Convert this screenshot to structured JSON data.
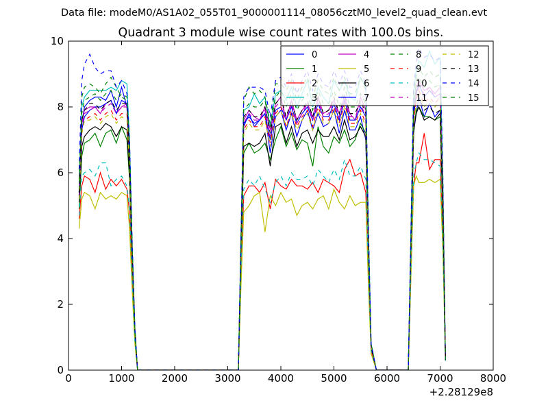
{
  "suptitle": "Data file: modeM0/AS1A02_055T01_9000001114_08056cztM0_level2_quad_clean.evt",
  "chart_data": {
    "type": "line",
    "title": "Quadrant 3 module wise count rates with 100.0s bins.",
    "xlabel": "",
    "ylabel": "",
    "x_offset_label": "+2.28129e8",
    "xlim": [
      0,
      8000
    ],
    "ylim": [
      0,
      10
    ],
    "x_ticks": [
      0,
      1000,
      2000,
      3000,
      4000,
      5000,
      6000,
      7000,
      8000
    ],
    "y_ticks": [
      0,
      2,
      4,
      6,
      8,
      10
    ],
    "grid": false,
    "legend_position": "top-right",
    "legend_columns": 4,
    "x": [
      200,
      250,
      300,
      400,
      500,
      600,
      700,
      800,
      900,
      1000,
      1100,
      1150,
      1200,
      1250,
      1300,
      2000,
      3000,
      3200,
      3250,
      3300,
      3400,
      3500,
      3600,
      3700,
      3800,
      3900,
      4000,
      4100,
      4200,
      4300,
      4400,
      4500,
      4600,
      4700,
      4800,
      4900,
      5000,
      5100,
      5200,
      5300,
      5400,
      5500,
      5600,
      5650,
      5700,
      5800,
      6000,
      6400,
      6450,
      6500,
      6550,
      6600,
      6700,
      6800,
      6900,
      7000,
      7050,
      7100
    ],
    "series": [
      {
        "name": "0",
        "color": "#0000ff",
        "dash": "solid",
        "values": [
          5.4,
          7.5,
          8.0,
          8.2,
          8.3,
          8.3,
          8.2,
          8.5,
          8.0,
          8.6,
          8.0,
          6.3,
          3.5,
          1.2,
          0.0,
          0.0,
          0.0,
          0.0,
          3.8,
          7.4,
          7.8,
          7.4,
          7.6,
          7.8,
          6.6,
          7.7,
          7.9,
          7.3,
          7.8,
          7.1,
          7.6,
          7.9,
          7.3,
          7.8,
          7.4,
          7.5,
          7.9,
          7.2,
          7.9,
          7.3,
          7.3,
          7.7,
          7.0,
          3.5,
          0.7,
          0.0,
          0.0,
          0.0,
          3.5,
          7.2,
          7.8,
          8.3,
          7.7,
          8.1,
          7.7,
          7.9,
          5.0,
          0.3
        ]
      },
      {
        "name": "1",
        "color": "#008000",
        "dash": "solid",
        "values": [
          4.9,
          6.5,
          6.9,
          7.0,
          7.2,
          6.8,
          7.2,
          7.3,
          6.9,
          7.4,
          7.0,
          5.8,
          3.2,
          1.1,
          0.0,
          0.0,
          0.0,
          0.0,
          3.6,
          6.6,
          6.9,
          6.6,
          6.7,
          6.9,
          6.4,
          7.0,
          7.4,
          6.8,
          7.2,
          6.7,
          7.0,
          6.9,
          6.2,
          7.4,
          6.8,
          6.6,
          7.1,
          6.9,
          7.3,
          6.8,
          7.0,
          7.5,
          7.2,
          3.4,
          0.7,
          0.0,
          0.0,
          0.0,
          3.5,
          7.2,
          7.9,
          8.0,
          7.7,
          7.7,
          7.6,
          7.7,
          4.8,
          0.3
        ]
      },
      {
        "name": "2",
        "color": "#ff0000",
        "dash": "solid",
        "values": [
          4.6,
          5.6,
          5.9,
          5.8,
          5.4,
          6.0,
          5.5,
          5.8,
          5.6,
          5.8,
          5.5,
          4.8,
          2.8,
          0.9,
          0.0,
          0.0,
          0.0,
          0.0,
          3.0,
          5.3,
          5.6,
          5.6,
          5.4,
          5.7,
          4.9,
          5.8,
          5.6,
          5.5,
          5.8,
          5.6,
          5.6,
          5.5,
          5.7,
          5.4,
          5.8,
          5.7,
          5.6,
          5.4,
          6.1,
          6.4,
          5.9,
          6.0,
          5.4,
          2.8,
          0.6,
          0.0,
          0.0,
          0.0,
          2.9,
          5.6,
          6.3,
          6.3,
          7.2,
          6.1,
          6.4,
          6.4,
          4.1,
          0.3
        ]
      },
      {
        "name": "3",
        "color": "#00bfbf",
        "dash": "solid",
        "values": [
          5.7,
          8.0,
          8.3,
          8.5,
          8.5,
          8.5,
          8.5,
          8.6,
          8.5,
          8.8,
          8.7,
          7.0,
          3.8,
          1.3,
          0.0,
          0.0,
          0.0,
          0.0,
          4.1,
          7.9,
          8.0,
          8.4,
          8.1,
          8.3,
          7.4,
          8.4,
          8.5,
          8.2,
          8.6,
          8.0,
          8.4,
          8.8,
          8.0,
          8.6,
          8.3,
          8.1,
          8.8,
          8.5,
          8.8,
          8.3,
          8.2,
          8.9,
          8.6,
          4.2,
          0.8,
          0.0,
          0.0,
          0.0,
          4.2,
          8.4,
          9.1,
          9.4,
          9.2,
          9.7,
          9.3,
          9.5,
          6.0,
          0.3
        ]
      },
      {
        "name": "4",
        "color": "#bf00bf",
        "dash": "solid",
        "values": [
          5.3,
          7.5,
          7.9,
          8.0,
          8.0,
          7.8,
          8.1,
          8.2,
          7.8,
          8.0,
          8.1,
          6.5,
          3.6,
          1.2,
          0.0,
          0.0,
          0.0,
          0.0,
          3.9,
          7.6,
          7.9,
          7.7,
          7.6,
          8.0,
          7.3,
          8.1,
          8.3,
          7.6,
          8.2,
          7.6,
          7.9,
          8.1,
          7.7,
          8.3,
          7.8,
          7.9,
          8.2,
          7.8,
          8.3,
          7.8,
          7.6,
          8.3,
          7.9,
          3.9,
          0.7,
          0.0,
          0.0,
          0.0,
          3.9,
          7.8,
          8.6,
          8.8,
          8.5,
          8.6,
          8.4,
          8.6,
          5.5,
          0.3
        ]
      },
      {
        "name": "5",
        "color": "#bfbf00",
        "dash": "solid",
        "values": [
          4.3,
          5.2,
          5.4,
          5.3,
          4.9,
          5.4,
          5.2,
          5.3,
          5.2,
          5.4,
          5.3,
          4.3,
          2.4,
          0.8,
          0.0,
          0.0,
          0.0,
          0.0,
          2.6,
          4.8,
          5.0,
          5.3,
          5.4,
          4.2,
          5.3,
          5.0,
          5.4,
          5.1,
          5.2,
          4.7,
          5.0,
          5.1,
          4.9,
          5.2,
          5.3,
          4.9,
          5.5,
          5.1,
          4.9,
          5.3,
          5.0,
          5.1,
          5.1,
          2.5,
          0.5,
          0.0,
          0.0,
          0.0,
          2.8,
          5.6,
          5.9,
          5.7,
          5.7,
          5.8,
          5.7,
          5.8,
          3.7,
          0.3
        ]
      },
      {
        "name": "6",
        "color": "#000000",
        "dash": "solid",
        "values": [
          5.1,
          6.8,
          7.1,
          7.3,
          7.4,
          7.3,
          7.5,
          7.4,
          7.1,
          7.4,
          7.3,
          5.9,
          3.3,
          1.1,
          0.0,
          0.0,
          0.0,
          0.0,
          3.5,
          6.8,
          6.9,
          6.8,
          6.9,
          7.2,
          6.2,
          7.4,
          7.5,
          6.9,
          7.4,
          6.8,
          7.2,
          7.3,
          6.9,
          7.3,
          7.1,
          7.1,
          7.4,
          7.0,
          7.6,
          7.0,
          7.1,
          7.4,
          7.1,
          3.5,
          0.7,
          0.0,
          0.0,
          0.0,
          3.6,
          7.3,
          7.8,
          8.0,
          7.6,
          7.7,
          7.6,
          7.8,
          4.9,
          0.3
        ]
      },
      {
        "name": "7",
        "color": "#0000ff",
        "dash": "solid",
        "values": [
          5.3,
          7.3,
          7.7,
          7.9,
          8.0,
          8.0,
          8.1,
          8.2,
          7.8,
          8.2,
          8.1,
          6.5,
          3.5,
          1.2,
          0.0,
          0.0,
          0.0,
          0.0,
          3.8,
          7.5,
          7.7,
          7.5,
          7.6,
          7.8,
          7.0,
          7.9,
          8.0,
          7.6,
          8.0,
          7.5,
          7.8,
          8.0,
          7.6,
          8.1,
          7.7,
          7.7,
          8.1,
          7.6,
          8.2,
          7.6,
          7.6,
          8.0,
          7.7,
          3.8,
          0.7,
          0.0,
          0.0,
          0.0,
          3.8,
          7.7,
          8.4,
          8.7,
          8.3,
          8.5,
          8.3,
          8.4,
          5.4,
          0.3
        ]
      },
      {
        "name": "8",
        "color": "#008000",
        "dash": "dashed",
        "values": [
          5.8,
          8.3,
          8.6,
          8.7,
          8.6,
          8.4,
          8.7,
          8.9,
          8.6,
          8.3,
          8.2,
          6.9,
          3.8,
          1.3,
          0.0,
          0.0,
          0.0,
          0.0,
          4.2,
          8.2,
          8.6,
          8.4,
          8.5,
          8.3,
          7.5,
          8.7,
          8.7,
          8.5,
          8.8,
          8.2,
          8.6,
          8.9,
          8.3,
          8.8,
          8.5,
          8.4,
          8.9,
          8.5,
          8.9,
          8.4,
          8.4,
          8.9,
          8.5,
          4.2,
          0.8,
          0.0,
          0.0,
          0.0,
          4.1,
          8.3,
          8.9,
          9.2,
          8.9,
          9.1,
          8.9,
          9.0,
          5.8,
          0.3
        ]
      },
      {
        "name": "9",
        "color": "#ff0000",
        "dash": "dashed",
        "values": [
          5.2,
          7.2,
          7.6,
          7.7,
          7.8,
          7.6,
          7.8,
          7.9,
          7.6,
          7.8,
          7.8,
          6.3,
          3.4,
          1.2,
          0.0,
          0.0,
          0.0,
          0.0,
          3.7,
          7.3,
          7.6,
          7.4,
          7.4,
          7.7,
          6.9,
          7.8,
          8.0,
          7.4,
          7.9,
          7.4,
          7.7,
          7.9,
          7.4,
          8.0,
          7.6,
          7.6,
          8.0,
          7.5,
          8.1,
          7.5,
          7.5,
          7.9,
          7.5,
          3.7,
          0.7,
          0.0,
          0.0,
          0.0,
          3.7,
          7.6,
          8.2,
          8.5,
          8.1,
          8.3,
          8.1,
          8.3,
          5.3,
          0.3
        ]
      },
      {
        "name": "10",
        "color": "#00bfbf",
        "dash": "dashed",
        "values": [
          4.7,
          5.9,
          6.0,
          6.1,
          5.9,
          6.3,
          6.3,
          5.6,
          5.8,
          5.9,
          5.6,
          4.9,
          2.7,
          0.9,
          0.0,
          0.0,
          0.0,
          0.0,
          3.1,
          5.5,
          5.8,
          5.6,
          5.9,
          5.5,
          5.1,
          5.7,
          5.9,
          5.6,
          6.0,
          5.8,
          5.8,
          5.9,
          5.6,
          6.1,
          5.9,
          5.7,
          6.1,
          5.8,
          6.4,
          5.9,
          5.9,
          6.2,
          5.8,
          2.9,
          0.6,
          0.0,
          0.0,
          0.0,
          3.0,
          5.9,
          6.3,
          6.6,
          6.4,
          6.4,
          6.3,
          6.2,
          4.0,
          0.3
        ]
      },
      {
        "name": "11",
        "color": "#bf00bf",
        "dash": "dashed",
        "values": [
          5.3,
          7.4,
          7.8,
          7.9,
          8.0,
          7.8,
          8.0,
          8.1,
          7.8,
          8.0,
          8.0,
          6.4,
          3.5,
          1.2,
          0.0,
          0.0,
          0.0,
          0.0,
          3.8,
          7.5,
          7.8,
          7.6,
          7.6,
          7.9,
          7.1,
          8.0,
          8.2,
          7.6,
          8.1,
          7.5,
          7.8,
          8.1,
          7.6,
          8.2,
          7.7,
          7.8,
          8.2,
          7.7,
          8.3,
          7.7,
          7.7,
          8.1,
          7.7,
          3.8,
          0.7,
          0.0,
          0.0,
          0.0,
          3.8,
          7.8,
          8.4,
          8.6,
          8.4,
          8.6,
          8.3,
          8.4,
          5.4,
          0.3
        ]
      },
      {
        "name": "12",
        "color": "#bfbf00",
        "dash": "dashed",
        "values": [
          5.2,
          7.2,
          7.6,
          7.6,
          7.7,
          7.5,
          7.7,
          7.8,
          7.5,
          7.7,
          7.6,
          6.2,
          3.4,
          1.1,
          0.0,
          0.0,
          0.0,
          0.0,
          3.6,
          7.2,
          7.5,
          7.3,
          7.3,
          7.6,
          6.8,
          7.7,
          7.9,
          7.4,
          7.8,
          7.3,
          7.6,
          7.8,
          7.3,
          7.9,
          7.5,
          7.5,
          7.9,
          7.4,
          8.0,
          7.4,
          7.4,
          7.8,
          7.4,
          3.7,
          0.7,
          0.0,
          0.0,
          0.0,
          3.7,
          7.5,
          8.1,
          8.4,
          8.0,
          8.2,
          8.0,
          8.2,
          5.2,
          0.3
        ]
      },
      {
        "name": "13",
        "color": "#000000",
        "dash": "dashed",
        "values": [
          5.4,
          7.6,
          7.9,
          8.1,
          8.1,
          7.9,
          8.1,
          8.2,
          7.9,
          8.1,
          8.1,
          6.5,
          3.6,
          1.2,
          0.0,
          0.0,
          0.0,
          0.0,
          3.9,
          7.7,
          7.9,
          7.7,
          7.7,
          8.0,
          7.2,
          8.1,
          8.3,
          7.7,
          8.2,
          7.6,
          7.9,
          8.2,
          7.7,
          8.3,
          7.8,
          7.9,
          8.3,
          7.8,
          8.4,
          7.8,
          7.8,
          8.2,
          7.8,
          3.9,
          0.7,
          0.0,
          0.0,
          0.0,
          3.8,
          7.9,
          8.5,
          8.3,
          7.9,
          8.0,
          7.8,
          7.9,
          5.1,
          0.3
        ]
      },
      {
        "name": "14",
        "color": "#0000ff",
        "dash": "dashed",
        "values": [
          6.1,
          8.8,
          9.3,
          9.6,
          9.2,
          9.0,
          9.1,
          9.1,
          8.6,
          8.8,
          8.4,
          7.0,
          3.9,
          1.3,
          0.0,
          0.0,
          0.0,
          0.0,
          4.3,
          8.3,
          8.6,
          8.6,
          8.6,
          8.5,
          7.7,
          8.8,
          8.9,
          8.6,
          9.0,
          8.4,
          8.8,
          9.1,
          8.5,
          9.0,
          8.7,
          8.6,
          9.1,
          8.7,
          9.1,
          8.6,
          8.6,
          9.1,
          8.7,
          4.3,
          0.8,
          0.0,
          0.0,
          0.0,
          4.3,
          8.6,
          9.3,
          9.8,
          9.5,
          9.6,
          9.4,
          9.5,
          6.1,
          0.3
        ]
      },
      {
        "name": "15",
        "color": "#008000",
        "dash": "dashed",
        "values": [
          5.5,
          7.8,
          8.2,
          8.3,
          8.4,
          8.2,
          8.4,
          8.5,
          8.2,
          8.4,
          8.3,
          6.7,
          3.7,
          1.2,
          0.0,
          0.0,
          0.0,
          0.0,
          4.0,
          7.9,
          8.1,
          8.0,
          8.0,
          8.2,
          7.4,
          8.3,
          8.5,
          8.0,
          8.4,
          7.9,
          8.2,
          8.4,
          7.9,
          8.5,
          8.1,
          8.1,
          8.5,
          8.0,
          8.6,
          8.0,
          8.0,
          8.4,
          8.1,
          4.0,
          0.8,
          0.0,
          0.0,
          0.0,
          4.0,
          8.0,
          8.7,
          8.9,
          8.6,
          8.8,
          8.6,
          8.7,
          5.6,
          0.3
        ]
      }
    ]
  }
}
